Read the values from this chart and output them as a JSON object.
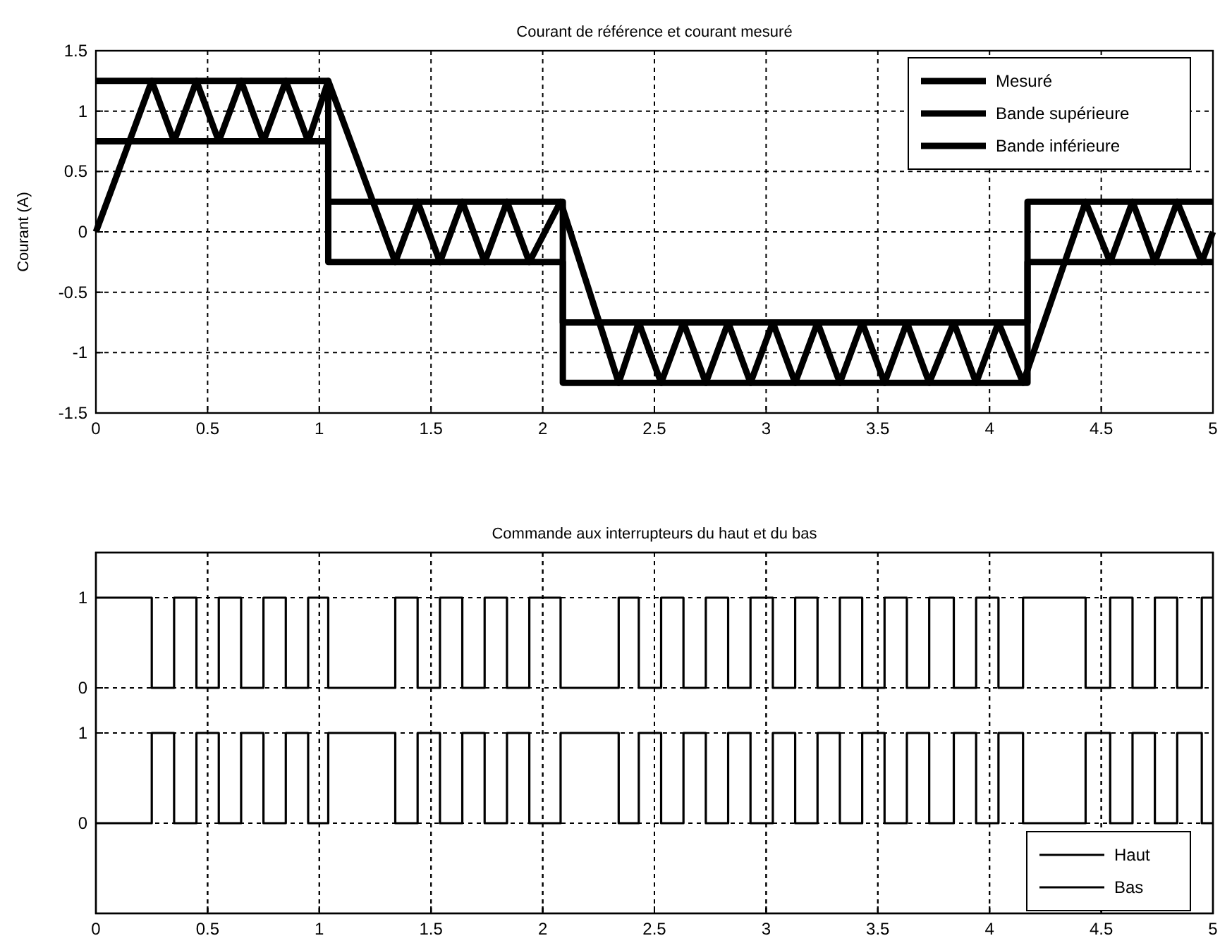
{
  "chart_data": [
    {
      "type": "line",
      "title": "Courant de référence et courant mesuré",
      "ylabel": "Courant (A)",
      "xlim": [
        0,
        5
      ],
      "ylim": [
        -1.5,
        1.5
      ],
      "xticks": [
        0,
        0.5,
        1,
        1.5,
        2,
        2.5,
        3,
        3.5,
        4,
        4.5,
        5
      ],
      "yticks": [
        -1.5,
        -1,
        -0.5,
        0,
        0.5,
        1,
        1.5
      ],
      "grid": true,
      "legend": "top right",
      "line_style": "solid",
      "series": [
        {
          "name": "Mesuré",
          "color": "#000000",
          "x": [
            0,
            0.25,
            0.35,
            0.45,
            0.55,
            0.65,
            0.75,
            0.85,
            0.95,
            1.04,
            1.34,
            1.44,
            1.54,
            1.64,
            1.74,
            1.84,
            1.94,
            2.08,
            2.34,
            2.43,
            2.53,
            2.63,
            2.73,
            2.83,
            2.93,
            3.03,
            3.13,
            3.23,
            3.33,
            3.43,
            3.53,
            3.63,
            3.73,
            3.84,
            3.94,
            4.04,
            4.15,
            4.43,
            4.54,
            4.64,
            4.74,
            4.84,
            4.95,
            5
          ],
          "values": [
            0,
            1.25,
            0.75,
            1.25,
            0.75,
            1.25,
            0.75,
            1.25,
            0.75,
            1.25,
            -0.25,
            0.25,
            -0.25,
            0.25,
            -0.25,
            0.25,
            -0.25,
            0.25,
            -1.25,
            -0.75,
            -1.25,
            -0.75,
            -1.25,
            -0.75,
            -1.25,
            -0.75,
            -1.25,
            -0.75,
            -1.25,
            -0.75,
            -1.25,
            -0.75,
            -1.25,
            -0.75,
            -1.25,
            -0.75,
            -1.25,
            0.25,
            -0.25,
            0.25,
            -0.25,
            0.25,
            -0.25,
            0
          ]
        },
        {
          "name": "Bande supérieure",
          "type": "step",
          "color": "#000000",
          "x": [
            0,
            1.04,
            2.09,
            4.17,
            5
          ],
          "values": [
            1.25,
            0.25,
            -0.75,
            0.25,
            0.25
          ]
        },
        {
          "name": "Bande inférieure",
          "type": "step",
          "color": "#000000",
          "x": [
            0,
            1.04,
            2.09,
            4.17,
            5
          ],
          "values": [
            0.75,
            -0.25,
            -1.25,
            -0.25,
            -0.25
          ]
        }
      ]
    },
    {
      "type": "step",
      "title": "Commande aux interrupteurs du haut et du bas",
      "xlim": [
        0,
        5
      ],
      "ylim": [
        -2.5,
        1.5
      ],
      "xticks": [
        0,
        0.5,
        1,
        1.5,
        2,
        2.5,
        3,
        3.5,
        4,
        4.5,
        5
      ],
      "yticks": [
        0,
        1
      ],
      "grid": true,
      "legend": "bottom right",
      "line_style": "solid",
      "series": [
        {
          "name": "Haut",
          "color": "#000000",
          "x": [
            0,
            0.25,
            0.35,
            0.45,
            0.55,
            0.65,
            0.75,
            0.85,
            0.95,
            1.04,
            1.34,
            1.44,
            1.54,
            1.64,
            1.74,
            1.84,
            1.94,
            2.08,
            2.34,
            2.43,
            2.53,
            2.63,
            2.73,
            2.83,
            2.93,
            3.03,
            3.13,
            3.23,
            3.33,
            3.43,
            3.53,
            3.63,
            3.73,
            3.84,
            3.94,
            4.04,
            4.15,
            4.43,
            4.54,
            4.64,
            4.74,
            4.84,
            4.95,
            5
          ],
          "values": [
            1,
            0,
            1,
            0,
            1,
            0,
            1,
            0,
            1,
            0,
            1,
            0,
            1,
            0,
            1,
            0,
            1,
            0,
            1,
            0,
            1,
            0,
            1,
            0,
            1,
            0,
            1,
            0,
            1,
            0,
            1,
            0,
            1,
            0,
            1,
            0,
            1,
            0,
            1,
            0,
            1,
            0,
            1,
            1
          ]
        }
      ]
    },
    {
      "type": "step",
      "xlim": [
        0,
        5
      ],
      "ylim": [
        -1,
        3
      ],
      "xticks": [
        0,
        0.5,
        1,
        1.5,
        2,
        2.5,
        3,
        3.5,
        4,
        4.5,
        5
      ],
      "yticks": [
        0,
        1
      ],
      "grid": true,
      "legend": "bottom right",
      "line_style": "solid",
      "tick_labels": "y",
      "series": [
        {
          "name": "Bas",
          "color": "#000000",
          "x": [
            0,
            0.25,
            0.35,
            0.45,
            0.55,
            0.65,
            0.75,
            0.85,
            0.95,
            1.04,
            1.34,
            1.44,
            1.54,
            1.64,
            1.74,
            1.84,
            1.94,
            2.08,
            2.34,
            2.43,
            2.53,
            2.63,
            2.73,
            2.83,
            2.93,
            3.03,
            3.13,
            3.23,
            3.33,
            3.43,
            3.53,
            3.63,
            3.73,
            3.84,
            3.94,
            4.04,
            4.15,
            4.43,
            4.54,
            4.64,
            4.74,
            4.84,
            4.95,
            5
          ],
          "values": [
            0,
            1,
            0,
            1,
            0,
            1,
            0,
            1,
            0,
            1,
            0,
            1,
            0,
            1,
            0,
            1,
            0,
            1,
            0,
            1,
            0,
            1,
            0,
            1,
            0,
            1,
            0,
            1,
            0,
            1,
            0,
            1,
            0,
            1,
            0,
            1,
            0,
            1,
            0,
            1,
            0,
            1,
            0,
            0
          ]
        }
      ]
    }
  ]
}
